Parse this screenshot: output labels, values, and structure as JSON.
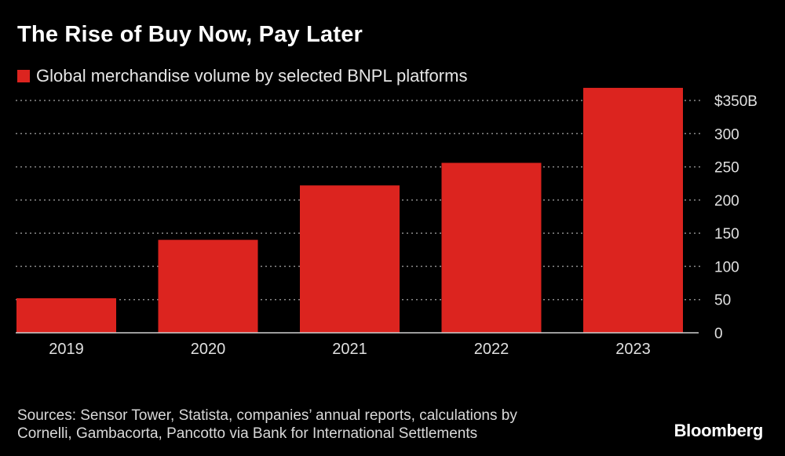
{
  "header": {
    "title": "The Rise of Buy Now, Pay Later"
  },
  "legend": {
    "label": "Global merchandise volume by selected BNPL platforms",
    "color": "#dc241f"
  },
  "chart_data": {
    "type": "bar",
    "title": "The Rise of Buy Now, Pay Later",
    "categories": [
      "2019",
      "2020",
      "2021",
      "2022",
      "2023"
    ],
    "series": [
      {
        "name": "Global merchandise volume by selected BNPL platforms",
        "values": [
          52,
          140,
          222,
          256,
          369
        ]
      }
    ],
    "ylim": [
      0,
      350
    ],
    "y_ticks": [
      0,
      50,
      100,
      150,
      200,
      250,
      300,
      350
    ],
    "y_tick_labels": [
      "0",
      "50",
      "100",
      "150",
      "200",
      "250",
      "300",
      "$350B"
    ],
    "y_axis_side": "right",
    "grid": true,
    "grid_style": "dotted",
    "bar_color": "#dc241f",
    "background": "#000000"
  },
  "footer": {
    "source_line1": "Sources: Sensor Tower, Statista, companies’ annual reports, calculations by",
    "source_line2": "Cornelli, Gambacorta, Pancotto via Bank for International Settlements",
    "brand": "Bloomberg"
  }
}
